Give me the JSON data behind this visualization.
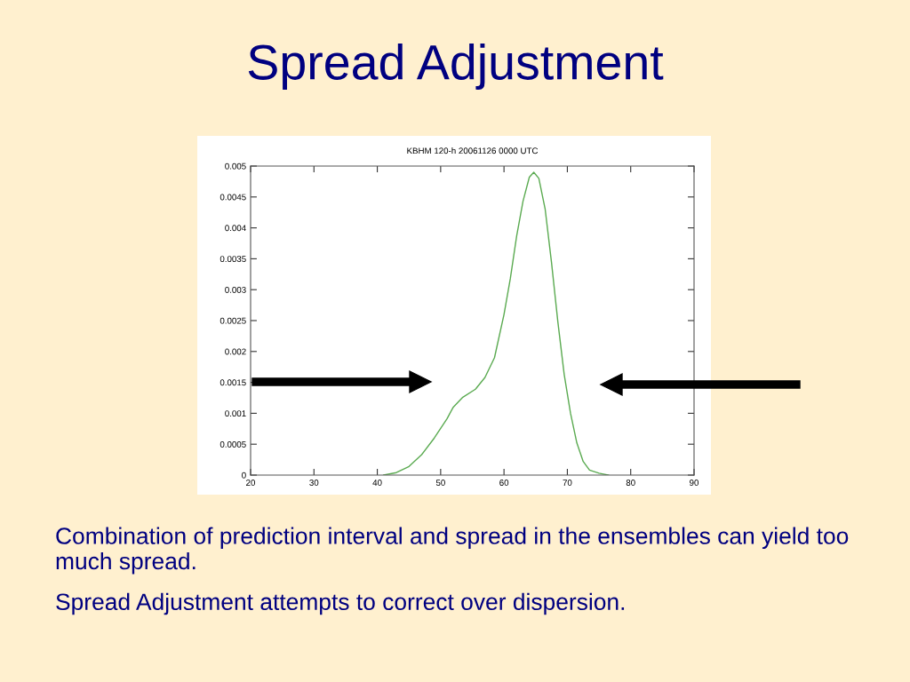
{
  "chart_data": {
    "type": "line",
    "title": "KBHM 120-h 20061126 0000 UTC",
    "annotations": [
      "Spread Adjustment",
      "Combination of prediction interval and spread in the ensembles can yield too much spread.",
      "Spread Adjustment attempts to correct over dispersion."
    ],
    "series": [
      {
        "color": "#5aaa50",
        "x": [
          41,
          43,
          45,
          47,
          49,
          51,
          52,
          53.5,
          55.5,
          57,
          58.5,
          60,
          61,
          62,
          63,
          64,
          64.7,
          65.5,
          66.5,
          67.5,
          68.5,
          69.5,
          70.5,
          71.5,
          72.5,
          73.5,
          75,
          76.5
        ],
        "values": [
          0,
          4e-05,
          0.00014,
          0.00033,
          0.0006,
          0.00091,
          0.0011,
          0.00126,
          0.00139,
          0.00158,
          0.0019,
          0.0026,
          0.00318,
          0.00387,
          0.00443,
          0.00482,
          0.0049,
          0.0048,
          0.0043,
          0.00344,
          0.00248,
          0.00163,
          0.001,
          0.00052,
          0.00022,
          8e-05,
          3e-05,
          0
        ]
      }
    ],
    "xlim": [
      20,
      90
    ],
    "xticks": [
      20,
      30,
      40,
      50,
      60,
      70,
      80,
      90
    ],
    "ylim": [
      0,
      0.005
    ],
    "yticks": [
      0,
      0.0005,
      0.001,
      0.0015,
      0.002,
      0.0025,
      0.003,
      0.0035,
      0.004,
      0.0045,
      0.005
    ],
    "grid": false,
    "marker": "none",
    "line_style": "solid"
  }
}
